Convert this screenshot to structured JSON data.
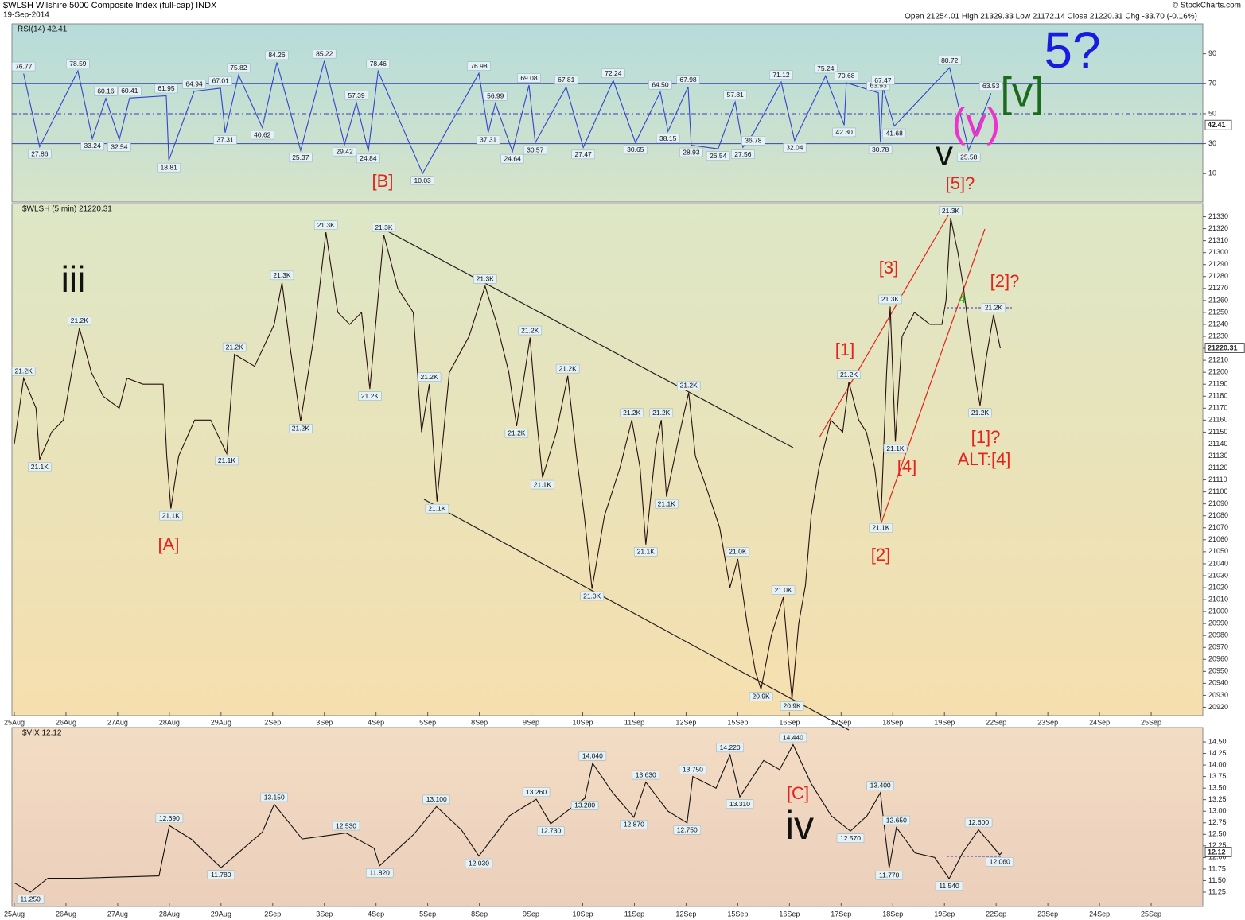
{
  "header": {
    "title": "$WLSH Wilshire 5000 Composite Index (full-cap) INDX",
    "date": "19-Sep-2014",
    "ohlc": "Open 21254.01  High 21329.33  Low 21172.14  Close 21220.31  Chg -33.70 (-0.16%)",
    "credit": "© StockCharts.com"
  },
  "chart_data": [
    {
      "type": "line",
      "legend_label": "RSI(14) 42.41",
      "color": "#3344cc",
      "last": 42.41,
      "xlim": [
        0,
        23
      ],
      "ylim": [
        -9,
        110
      ],
      "yticks": [
        10,
        30,
        50,
        70,
        90
      ],
      "hlines": [
        30,
        70
      ],
      "midline": 50,
      "x": [
        0.18,
        0.49,
        1.23,
        1.51,
        1.77,
        2.03,
        2.23,
        2.94,
        2.99,
        3.48,
        3.99,
        4.08,
        4.34,
        4.8,
        5.08,
        5.54,
        6.0,
        6.39,
        6.62,
        6.85,
        7.04,
        7.9,
        8.99,
        9.17,
        9.31,
        9.64,
        9.96,
        10.08,
        10.68,
        11.01,
        11.59,
        12.02,
        12.5,
        12.65,
        13.04,
        13.1,
        13.62,
        13.95,
        14.1,
        14.3,
        14.84,
        15.1,
        15.7,
        16.06,
        16.1,
        16.72,
        16.76,
        16.81,
        17.03,
        18.1,
        18.47,
        18.9
      ],
      "values": [
        76.77,
        27.86,
        78.59,
        33.24,
        60.16,
        32.54,
        60.41,
        61.95,
        18.81,
        64.94,
        67.01,
        37.31,
        75.82,
        40.62,
        84.26,
        25.37,
        85.22,
        29.42,
        57.39,
        24.84,
        78.46,
        10.03,
        76.98,
        37.31,
        56.99,
        24.64,
        69.08,
        30.57,
        67.81,
        27.47,
        72.24,
        30.65,
        64.5,
        38.15,
        67.98,
        28.93,
        26.54,
        57.81,
        27.56,
        36.78,
        71.12,
        32.04,
        75.24,
        42.3,
        70.68,
        63.93,
        30.78,
        67.47,
        41.68,
        80.72,
        25.58,
        63.53
      ],
      "value_labels": [
        "76.77",
        "27.86",
        "78.59",
        "33.24",
        "60.16",
        "32.54",
        "60.41",
        "61.95",
        "18.81",
        "64.94",
        "67.01",
        "37.31",
        "75.82",
        "40.62",
        "84.26",
        "25.37",
        "85.22",
        "29.42",
        "57.39",
        "24.84",
        "78.46",
        "10.03",
        "76.98",
        "37.31",
        "56.99",
        "24.64",
        "69.08",
        "30.57",
        "67.81",
        "27.47",
        "72.24",
        "30.65",
        "64.50",
        "38.15",
        "67.98",
        "28.93",
        "26.54",
        "57.81",
        "27.56",
        "36.78",
        "71.12",
        "32.04",
        "75.24",
        "42.30",
        "70.68",
        "63.93",
        "30.78",
        "67.47",
        "41.68",
        "80.72",
        "25.58",
        "63.53"
      ],
      "annotations": [
        {
          "text": "[B]",
          "color": "#e3231c"
        },
        {
          "text": "v",
          "color": "#111111"
        },
        {
          "text": "(v)",
          "color": "#ee33cc"
        },
        {
          "text": "[v]",
          "color": "#1c6b1c"
        },
        {
          "text": "5?",
          "color": "#1a1ae0"
        },
        {
          "text": "[5]?",
          "color": "#e3231c"
        }
      ]
    },
    {
      "type": "line",
      "legend_label": "$WLSH (5 min) 21220.31",
      "color": "#2a1010",
      "last": 21220.31,
      "xlim": [
        0,
        23
      ],
      "ylim": [
        20913,
        21341
      ],
      "yticks": [
        20920,
        20930,
        20940,
        20950,
        20960,
        20970,
        20980,
        20990,
        21000,
        21010,
        21020,
        21030,
        21040,
        21050,
        21060,
        21070,
        21080,
        21090,
        21100,
        21110,
        21120,
        21130,
        21140,
        21150,
        21160,
        21170,
        21180,
        21190,
        21200,
        21210,
        21220,
        21230,
        21240,
        21250,
        21260,
        21270,
        21280,
        21290,
        21300,
        21310,
        21320,
        21330
      ],
      "xticks": [
        {
          "value": 0,
          "label": "25Aug"
        },
        {
          "value": 1,
          "label": "26Aug"
        },
        {
          "value": 2,
          "label": "27Aug"
        },
        {
          "value": 3,
          "label": "28Aug"
        },
        {
          "value": 4,
          "label": "29Aug"
        },
        {
          "value": 5,
          "label": "2Sep"
        },
        {
          "value": 6,
          "label": "3Sep"
        },
        {
          "value": 7,
          "label": "4Sep"
        },
        {
          "value": 8,
          "label": "5Sep"
        },
        {
          "value": 9,
          "label": "8Sep"
        },
        {
          "value": 10,
          "label": "9Sep"
        },
        {
          "value": 11,
          "label": "10Sep"
        },
        {
          "value": 12,
          "label": "11Sep"
        },
        {
          "value": 13,
          "label": "12Sep"
        },
        {
          "value": 14,
          "label": "15Sep"
        },
        {
          "value": 15,
          "label": "16Sep"
        },
        {
          "value": 16,
          "label": "17Sep"
        },
        {
          "value": 17,
          "label": "18Sep"
        },
        {
          "value": 18,
          "label": "19Sep"
        },
        {
          "value": 19,
          "label": "22Sep"
        },
        {
          "value": 20,
          "label": "23Sep"
        },
        {
          "value": 21,
          "label": "24Sep"
        },
        {
          "value": 22,
          "label": "25Sep"
        }
      ],
      "x": [
        0,
        0.18,
        0.42,
        0.49,
        0.72,
        0.95,
        1.11,
        1.26,
        1.49,
        1.72,
        2.03,
        2.18,
        2.49,
        2.88,
        2.95,
        3.03,
        3.18,
        3.49,
        3.8,
        4.11,
        4.26,
        4.65,
        5.03,
        5.18,
        5.34,
        5.54,
        5.8,
        6.03,
        6.26,
        6.49,
        6.72,
        6.88,
        7.15,
        7.42,
        7.72,
        7.88,
        8.03,
        8.18,
        8.42,
        8.8,
        9.11,
        9.34,
        9.57,
        9.72,
        9.98,
        10.11,
        10.22,
        10.49,
        10.71,
        10.88,
        11.03,
        11.18,
        11.42,
        11.72,
        11.95,
        12.11,
        12.22,
        12.42,
        12.52,
        12.62,
        12.88,
        13.05,
        13.18,
        13.42,
        13.65,
        13.85,
        14,
        14.18,
        14.34,
        14.45,
        14.65,
        14.88,
        14.98,
        15.05,
        15.18,
        15.31,
        15.42,
        15.57,
        15.8,
        16.03,
        16.15,
        16.34,
        16.49,
        16.65,
        16.77,
        16.88,
        16.95,
        17.05,
        17.18,
        17.42,
        17.72,
        17.95,
        18.03,
        18.12,
        18.26,
        18.37,
        18.49,
        18.62,
        18.69,
        18.8,
        18.95,
        19.08
      ],
      "values": [
        21140,
        21195,
        21170,
        21127,
        21150,
        21160,
        21200,
        21237,
        21200,
        21180,
        21170,
        21195,
        21190,
        21190,
        21130,
        21086,
        21130,
        21160,
        21160,
        21132,
        21215,
        21205,
        21240,
        21275,
        21220,
        21159,
        21230,
        21317,
        21250,
        21240,
        21250,
        21186,
        21315,
        21270,
        21250,
        21150,
        21190,
        21092,
        21200,
        21230,
        21272,
        21240,
        21200,
        21155,
        21229,
        21160,
        21112,
        21150,
        21197,
        21130,
        21080,
        21019,
        21080,
        21120,
        21160,
        21120,
        21056,
        21140,
        21160,
        21096,
        21150,
        21183,
        21130,
        21100,
        21070,
        21020,
        21044,
        20990,
        20950,
        20935,
        20980,
        21012,
        20960,
        20927,
        20990,
        21022,
        21080,
        21120,
        21160,
        21150,
        21192,
        21160,
        21150,
        21120,
        21076,
        21200,
        21255,
        21142,
        21230,
        21250,
        21240,
        21240,
        21260,
        21329,
        21300,
        21270,
        21230,
        21190,
        21172,
        21210,
        21248,
        21220
      ],
      "value_labels": [
        null,
        "21.2K",
        null,
        "21.1K",
        null,
        null,
        null,
        "21.2K",
        null,
        null,
        null,
        null,
        null,
        null,
        null,
        "21.1K",
        null,
        null,
        null,
        "21.1K",
        "21.2K",
        null,
        null,
        "21.3K",
        null,
        "21.2K",
        null,
        "21.3K",
        null,
        null,
        null,
        "21.2K",
        "21.3K",
        null,
        null,
        null,
        "21.2K",
        "21.1K",
        null,
        null,
        "21.3K",
        null,
        null,
        "21.2K",
        "21.2K",
        null,
        "21.1K",
        null,
        "21.2K",
        null,
        null,
        "21.0K",
        null,
        null,
        "21.2K",
        null,
        "21.1K",
        null,
        "21.2K",
        "21.1K",
        null,
        "21.2K",
        null,
        null,
        null,
        null,
        "21.0K",
        null,
        null,
        "20.9K",
        null,
        "21.0K",
        null,
        "20.9K",
        null,
        null,
        null,
        null,
        null,
        null,
        "21.2K",
        null,
        null,
        null,
        "21.1K",
        null,
        "21.3K",
        "21.1K",
        null,
        null,
        null,
        null,
        null,
        "21.3K",
        null,
        null,
        null,
        null,
        "21.2K",
        null,
        "21.2K",
        null
      ],
      "annotations": [
        {
          "text": "iii",
          "color": "#111111"
        },
        {
          "text": "[A]",
          "color": "#e3231c"
        },
        {
          "text": "[1]",
          "color": "#e3231c"
        },
        {
          "text": "[3]",
          "color": "#e3231c"
        },
        {
          "text": "[2]",
          "color": "#e3231c"
        },
        {
          "text": "[4]",
          "color": "#e3231c"
        },
        {
          "text": "[2]?",
          "color": "#e3231c"
        },
        {
          "text": "[1]?",
          "color": "#e3231c"
        },
        {
          "text": "ALT:[4]",
          "color": "#e3231c"
        },
        {
          "text": "4",
          "color": "#22aa22"
        }
      ]
    },
    {
      "type": "line",
      "legend_label": "$VIX 12.12",
      "color": "#111111",
      "last": 12.12,
      "xlim": [
        0,
        23
      ],
      "ylim": [
        10.94,
        14.81
      ],
      "yticks": [
        11.25,
        {
          "value": 11.5,
          "label": "11.50"
        },
        11.75,
        {
          "value": 12,
          "label": "12.00"
        },
        12.25,
        {
          "value": 12.5,
          "label": "12.50"
        },
        12.75,
        {
          "value": 13,
          "label": "13.00"
        },
        13.25,
        {
          "value": 13.5,
          "label": "13.50"
        },
        13.75,
        {
          "value": 14,
          "label": "14.00"
        },
        14.25,
        {
          "value": 14.5,
          "label": "14.50"
        }
      ],
      "xticks": [
        {
          "value": 0,
          "label": "25Aug"
        },
        {
          "value": 1,
          "label": "26Aug"
        },
        {
          "value": 2,
          "label": "27Aug"
        },
        {
          "value": 3,
          "label": "28Aug"
        },
        {
          "value": 4,
          "label": "29Aug"
        },
        {
          "value": 5,
          "label": "2Sep"
        },
        {
          "value": 6,
          "label": "3Sep"
        },
        {
          "value": 7,
          "label": "4Sep"
        },
        {
          "value": 8,
          "label": "5Sep"
        },
        {
          "value": 9,
          "label": "8Sep"
        },
        {
          "value": 10,
          "label": "9Sep"
        },
        {
          "value": 11,
          "label": "10Sep"
        },
        {
          "value": 12,
          "label": "11Sep"
        },
        {
          "value": 13,
          "label": "12Sep"
        },
        {
          "value": 14,
          "label": "15Sep"
        },
        {
          "value": 15,
          "label": "16Sep"
        },
        {
          "value": 16,
          "label": "17Sep"
        },
        {
          "value": 17,
          "label": "18Sep"
        },
        {
          "value": 18,
          "label": "19Sep"
        },
        {
          "value": 19,
          "label": "22Sep"
        },
        {
          "value": 20,
          "label": "23Sep"
        },
        {
          "value": 21,
          "label": "24Sep"
        },
        {
          "value": 22,
          "label": "25Sep"
        }
      ],
      "x": [
        0,
        0.31,
        0.65,
        1.26,
        2.8,
        3.0,
        3.42,
        4.0,
        4.8,
        5.03,
        5.57,
        6.42,
        6.96,
        7.07,
        7.73,
        8.17,
        8.65,
        8.99,
        9.58,
        10.1,
        10.38,
        10.81,
        11.04,
        11.19,
        11.58,
        11.99,
        12.22,
        12.65,
        13.02,
        13.13,
        13.58,
        13.85,
        14.04,
        14.5,
        14.81,
        15.07,
        15.42,
        15.81,
        16.18,
        16.5,
        16.76,
        16.93,
        17.07,
        17.43,
        17.81,
        18.09,
        18.35,
        18.66,
        19.07,
        19.12
      ],
      "values": [
        11.45,
        11.25,
        11.55,
        11.55,
        11.6,
        12.69,
        12.4,
        11.78,
        12.55,
        13.15,
        12.4,
        12.53,
        12.2,
        11.82,
        12.5,
        13.1,
        12.6,
        12.03,
        12.9,
        13.26,
        12.73,
        13.1,
        13.28,
        14.04,
        13.4,
        12.87,
        13.63,
        13.0,
        12.75,
        13.75,
        13.5,
        14.22,
        13.31,
        14.1,
        13.9,
        14.44,
        13.6,
        12.9,
        12.57,
        12.9,
        13.4,
        11.77,
        12.65,
        12.1,
        12.0,
        11.54,
        12.1,
        12.6,
        12.06,
        12.12
      ],
      "value_labels": [
        null,
        "11.250",
        null,
        null,
        null,
        "12.690",
        null,
        "11.780",
        null,
        "13.150",
        null,
        "12.530",
        null,
        "11.820",
        null,
        "13.100",
        null,
        "12.030",
        null,
        "13.260",
        "12.730",
        null,
        "13.280",
        "14.040",
        null,
        "12.870",
        "13.630",
        null,
        "12.750",
        "13.750",
        null,
        "14.220",
        "13.310",
        null,
        null,
        "14.440",
        null,
        null,
        "12.570",
        null,
        "13.400",
        "11.770",
        "12.650",
        null,
        null,
        "11.540",
        null,
        "12.600",
        "12.060",
        null
      ],
      "annotations": [
        {
          "text": "[C]",
          "color": "#e3231c"
        },
        {
          "text": "iv",
          "color": "#111111"
        }
      ]
    }
  ]
}
